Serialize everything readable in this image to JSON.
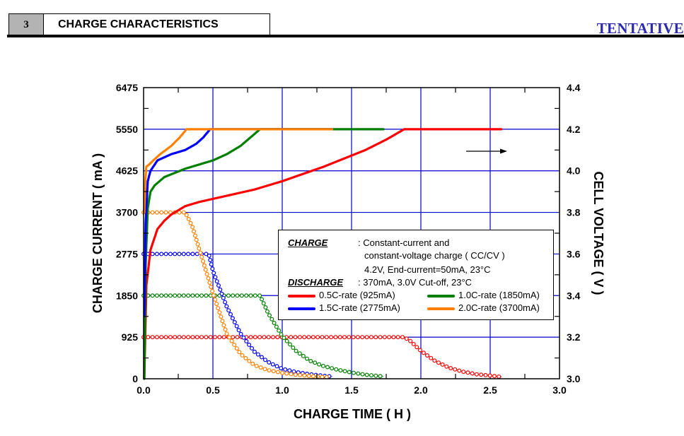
{
  "header": {
    "section_number": "3",
    "section_title": "CHARGE CHARACTERISTICS",
    "status_label": "TENTATIVE",
    "status_color": "#2b2bb0"
  },
  "legend": {
    "charge_key": "CHARGE",
    "charge_text_1": ": Constant-current and",
    "charge_text_2": "constant-voltage charge ( CC/CV )",
    "charge_text_3": "4.2V, End-current=50mA, 23°C",
    "discharge_key": "DISCHARGE",
    "discharge_text": ": 370mA, 3.0V Cut-off, 23°C",
    "entries": [
      {
        "label": "0.5C-rate (925mA)",
        "color": "#ff0000"
      },
      {
        "label": "1.0C-rate (1850mA)",
        "color": "#008000"
      },
      {
        "label": "1.5C-rate (2775mA)",
        "color": "#0000ff"
      },
      {
        "label": "2.0C-rate (3700mA)",
        "color": "#ff8000"
      }
    ]
  },
  "chart_data": {
    "type": "line",
    "title": "CHARGE CHARACTERISTICS",
    "xlabel": "CHARGE TIME ( H )",
    "ylabel": "CHARGE CURRENT ( mA )",
    "y2label": "CELL VOLTAGE ( V )",
    "xlim": [
      0,
      3.0
    ],
    "ylim": [
      0,
      6475
    ],
    "y2lim": [
      3.0,
      4.4
    ],
    "xticks": [
      "0.0",
      "0.5",
      "1.0",
      "1.5",
      "2.0",
      "2.5",
      "3.0"
    ],
    "xtick_values": [
      0,
      0.5,
      1.0,
      1.5,
      2.0,
      2.5,
      3.0
    ],
    "yticks": [
      "0",
      "925",
      "1850",
      "2775",
      "3700",
      "4625",
      "5550",
      "6475"
    ],
    "ytick_values": [
      0,
      925,
      1850,
      2775,
      3700,
      4625,
      5550,
      6475
    ],
    "y2ticks": [
      "3.0",
      "3.2",
      "3.4",
      "3.6",
      "3.8",
      "4.0",
      "4.2",
      "4.4"
    ],
    "y2tick_values": [
      3.0,
      3.2,
      3.4,
      3.6,
      3.8,
      4.0,
      4.2,
      4.4
    ],
    "grid": true,
    "grid_color": "#0000cc",
    "legend_position": "center-right",
    "annotation": "arrow pointing right (voltage curves read on right axis)",
    "series": [
      {
        "name": "0.5C-rate (925mA) voltage",
        "color": "#ff0000",
        "axis": "right",
        "style": "line",
        "x": [
          0.005,
          0.02,
          0.05,
          0.1,
          0.15,
          0.2,
          0.3,
          0.4,
          0.6,
          0.8,
          1.0,
          1.15,
          1.3,
          1.45,
          1.6,
          1.75,
          1.88,
          2.0,
          2.2,
          2.4,
          2.58
        ],
        "y": [
          3.0,
          3.45,
          3.62,
          3.72,
          3.76,
          3.79,
          3.83,
          3.85,
          3.88,
          3.91,
          3.95,
          3.985,
          4.02,
          4.06,
          4.1,
          4.15,
          4.2,
          4.2,
          4.2,
          4.2,
          4.2
        ]
      },
      {
        "name": "1.0C-rate (1850mA) voltage",
        "color": "#008000",
        "axis": "right",
        "style": "line",
        "x": [
          0.005,
          0.015,
          0.03,
          0.05,
          0.08,
          0.15,
          0.3,
          0.5,
          0.6,
          0.7,
          0.77,
          0.84,
          1.0,
          1.3,
          1.73
        ],
        "y": [
          3.0,
          3.55,
          3.82,
          3.9,
          3.93,
          3.97,
          4.01,
          4.05,
          4.08,
          4.12,
          4.16,
          4.2,
          4.2,
          4.2,
          4.2
        ]
      },
      {
        "name": "1.5C-rate (2775mA) voltage",
        "color": "#0000ff",
        "axis": "right",
        "style": "line",
        "x": [
          0.005,
          0.015,
          0.03,
          0.05,
          0.1,
          0.2,
          0.3,
          0.38,
          0.43,
          0.48,
          0.7,
          1.0,
          1.36
        ],
        "y": [
          3.3,
          3.75,
          3.95,
          4.0,
          4.05,
          4.08,
          4.1,
          4.13,
          4.16,
          4.2,
          4.2,
          4.2,
          4.2
        ]
      },
      {
        "name": "2.0C-rate (3700mA) voltage",
        "color": "#ff8000",
        "axis": "right",
        "style": "line",
        "x": [
          0.005,
          0.012,
          0.02,
          0.04,
          0.07,
          0.12,
          0.2,
          0.26,
          0.31,
          0.6,
          1.0,
          1.36
        ],
        "y": [
          3.8,
          3.95,
          4.02,
          4.03,
          4.05,
          4.08,
          4.12,
          4.16,
          4.2,
          4.2,
          4.2,
          4.2
        ]
      },
      {
        "name": "0.5C-rate (925mA) current",
        "color": "#ff0000",
        "axis": "left",
        "style": "markers",
        "x": [
          0.0,
          0.5,
          1.0,
          1.5,
          1.88,
          1.92,
          2.0,
          2.1,
          2.2,
          2.3,
          2.4,
          2.5,
          2.58
        ],
        "y": [
          925,
          925,
          925,
          925,
          925,
          850,
          620,
          400,
          250,
          160,
          100,
          70,
          40
        ]
      },
      {
        "name": "1.0C-rate (1850mA) current",
        "color": "#008000",
        "axis": "left",
        "style": "markers",
        "x": [
          0.0,
          0.4,
          0.84,
          0.9,
          1.0,
          1.1,
          1.2,
          1.3,
          1.4,
          1.5,
          1.6,
          1.73
        ],
        "y": [
          1850,
          1850,
          1850,
          1450,
          950,
          620,
          400,
          280,
          200,
          140,
          90,
          50
        ]
      },
      {
        "name": "1.5C-rate (2775mA) current",
        "color": "#0000ff",
        "axis": "left",
        "style": "markers",
        "x": [
          0.0,
          0.3,
          0.47,
          0.5,
          0.6,
          0.7,
          0.8,
          0.9,
          1.0,
          1.1,
          1.2,
          1.3,
          1.36
        ],
        "y": [
          2775,
          2775,
          2775,
          2400,
          1600,
          1000,
          600,
          370,
          220,
          150,
          100,
          65,
          50
        ]
      },
      {
        "name": "2.0C-rate (3700mA) current",
        "color": "#ff8000",
        "axis": "left",
        "style": "markers",
        "x": [
          0.0,
          0.2,
          0.3,
          0.35,
          0.4,
          0.5,
          0.6,
          0.7,
          0.8,
          0.9,
          1.0,
          1.1,
          1.2,
          1.34
        ],
        "y": [
          3700,
          3700,
          3700,
          3400,
          2900,
          1900,
          1000,
          550,
          300,
          190,
          130,
          90,
          60,
          30
        ]
      }
    ]
  }
}
